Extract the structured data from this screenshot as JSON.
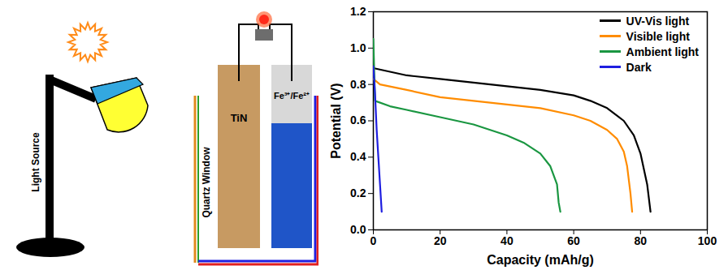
{
  "diagram": {
    "labels": {
      "lamp": "Light Source",
      "window": "Quartz Window",
      "anode": "TiN",
      "catholyte": "Fe³⁺/Fe²⁺"
    }
  },
  "chart_data": {
    "type": "line",
    "xlabel": "Capacity (mAh/g)",
    "ylabel": "Potential (V)",
    "xlim": [
      0,
      100
    ],
    "xticks": [
      0,
      20,
      40,
      60,
      80,
      100
    ],
    "ylim": [
      0,
      1.2
    ],
    "yticks": [
      {
        "value": 0,
        "label": "0.0"
      },
      {
        "value": 0.2,
        "label": "0.2"
      },
      {
        "value": 0.4,
        "label": "0.4"
      },
      {
        "value": 0.6,
        "label": "0.6"
      },
      {
        "value": 0.8,
        "label": "0.8"
      },
      {
        "value": 1.0,
        "label": "1.0"
      },
      {
        "value": 1.2,
        "label": "1.2"
      }
    ],
    "grid": false,
    "legend": "top-right",
    "series": [
      {
        "name": "UV-Vis light",
        "color": "#000000",
        "x": [
          0,
          5,
          10,
          20,
          30,
          40,
          50,
          60,
          65,
          70,
          75,
          78,
          80,
          82,
          83
        ],
        "values": [
          0.89,
          0.87,
          0.85,
          0.83,
          0.81,
          0.79,
          0.77,
          0.74,
          0.71,
          0.67,
          0.6,
          0.52,
          0.42,
          0.25,
          0.1
        ]
      },
      {
        "name": "Visible light",
        "color": "#ff8c00",
        "x": [
          0,
          2,
          10,
          20,
          30,
          40,
          50,
          60,
          65,
          70,
          73,
          75,
          76,
          77,
          77.5
        ],
        "values": [
          0.83,
          0.8,
          0.77,
          0.73,
          0.71,
          0.69,
          0.67,
          0.63,
          0.6,
          0.55,
          0.5,
          0.43,
          0.35,
          0.2,
          0.1
        ]
      },
      {
        "name": "Ambient light",
        "color": "#1a9641",
        "x": [
          0,
          0.5,
          5,
          10,
          20,
          30,
          40,
          45,
          50,
          53,
          55,
          55.5,
          56
        ],
        "values": [
          1.05,
          0.71,
          0.68,
          0.66,
          0.62,
          0.58,
          0.52,
          0.48,
          0.42,
          0.35,
          0.25,
          0.15,
          0.1
        ]
      },
      {
        "name": "Dark",
        "color": "#1f1fe0",
        "x": [
          0,
          0.5,
          1,
          1.5,
          2,
          2.5
        ],
        "values": [
          0.9,
          0.75,
          0.55,
          0.4,
          0.25,
          0.1
        ]
      }
    ]
  }
}
